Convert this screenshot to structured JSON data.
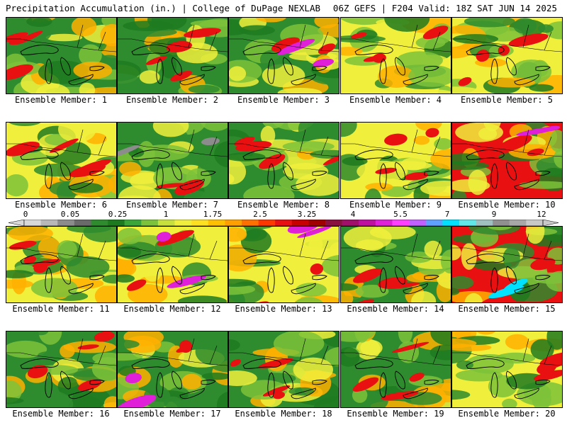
{
  "header": {
    "title_left": "Precipitation Accumulation (in.) | College of DuPage NEXLAB",
    "title_right": "06Z GEFS | F204 Valid: 18Z SAT JUN 14 2025"
  },
  "panels": [
    {
      "label": "Ensemble Member: 1",
      "dominant": "green",
      "accent": "red"
    },
    {
      "label": "Ensemble Member: 2",
      "dominant": "green",
      "accent": "red"
    },
    {
      "label": "Ensemble Member: 3",
      "dominant": "green",
      "accent": "magenta"
    },
    {
      "label": "Ensemble Member: 4",
      "dominant": "yellow",
      "accent": "red"
    },
    {
      "label": "Ensemble Member: 5",
      "dominant": "yellow",
      "accent": "red"
    },
    {
      "label": "Ensemble Member: 6",
      "dominant": "yellow",
      "accent": "red"
    },
    {
      "label": "Ensemble Member: 7",
      "dominant": "green",
      "accent": "gray"
    },
    {
      "label": "Ensemble Member: 8",
      "dominant": "green",
      "accent": "red"
    },
    {
      "label": "Ensemble Member: 9",
      "dominant": "yellow",
      "accent": "red"
    },
    {
      "label": "Ensemble Member: 10",
      "dominant": "red",
      "accent": "magenta"
    },
    {
      "label": "Ensemble Member: 11",
      "dominant": "yellow",
      "accent": "red"
    },
    {
      "label": "Ensemble Member: 12",
      "dominant": "yellow",
      "accent": "magenta"
    },
    {
      "label": "Ensemble Member: 13",
      "dominant": "yellow",
      "accent": "magenta"
    },
    {
      "label": "Ensemble Member: 14",
      "dominant": "green",
      "accent": "red"
    },
    {
      "label": "Ensemble Member: 15",
      "dominant": "red",
      "accent": "cyan"
    },
    {
      "label": "Ensemble Member: 16",
      "dominant": "green",
      "accent": "red"
    },
    {
      "label": "Ensemble Member: 17",
      "dominant": "green",
      "accent": "magenta"
    },
    {
      "label": "Ensemble Member: 18",
      "dominant": "green",
      "accent": "red"
    },
    {
      "label": "Ensemble Member: 19",
      "dominant": "green",
      "accent": "red"
    },
    {
      "label": "Ensemble Member: 20",
      "dominant": "yellow",
      "accent": "red"
    }
  ],
  "colorbar": {
    "labels": [
      "0",
      "0.05",
      "0.25",
      "1",
      "1.75",
      "2.5",
      "3.25",
      "4",
      "5.5",
      "7",
      "9",
      "12"
    ],
    "colors": [
      "#d8d8d8",
      "#b8b8b8",
      "#8c8c8c",
      "#6a6a6a",
      "#2e8b2e",
      "#1e7a1e",
      "#3aa63a",
      "#7cc23a",
      "#c8e03c",
      "#f0f03c",
      "#ffe020",
      "#ffc000",
      "#ffa000",
      "#ff7000",
      "#ff3800",
      "#e81010",
      "#c80000",
      "#a00000",
      "#8a1040",
      "#a0106a",
      "#c010a0",
      "#e020d8",
      "#ff40ff",
      "#c060ff",
      "#60a0ff",
      "#00e0ff",
      "#60e8e8",
      "#a0c0c0",
      "#909090",
      "#a8a8a8",
      "#c8c8c8"
    ]
  },
  "palette": {
    "green": "#2e8b2e",
    "darkgreen": "#1e7a1e",
    "lightgreen": "#7cc23a",
    "yellow": "#f0f03c",
    "orange": "#ffb000",
    "red": "#e81010",
    "darkred": "#a00000",
    "magenta": "#e020d8",
    "cyan": "#00e0ff",
    "gray": "#8c8c8c"
  }
}
